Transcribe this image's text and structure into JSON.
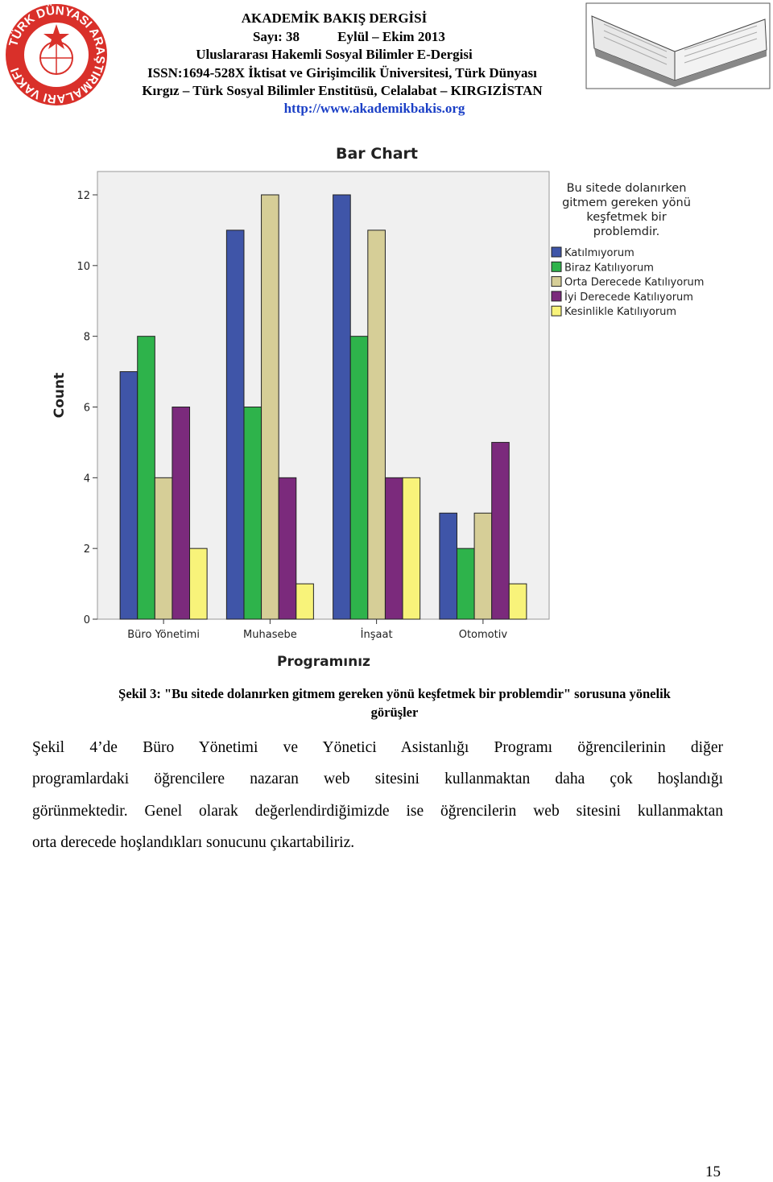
{
  "header": {
    "journal": "AKADEMİK BAKIŞ DERGİSİ",
    "issue": "Sayı: 38",
    "date": "Eylül – Ekim 2013",
    "subtitle": "Uluslararası Hakemli Sosyal Bilimler E-Dergisi",
    "issn": "ISSN:1694-528X İktisat ve Girişimcilik Üniversitesi, Türk Dünyası",
    "institute": "Kırgız – Türk Sosyal Bilimler Enstitüsü, Celalabat – KIRGIZİSTAN",
    "url": "http://www.akademikbakis.org",
    "logo_text": "TÜRK DÜNYASI ARAŞTIRMALARI VAKFI"
  },
  "chart_data": {
    "type": "bar",
    "title": "Bar Chart",
    "x_label": "Programınız",
    "y_label": "Count",
    "categories": [
      "Büro Yönetimi",
      "Muhasebe",
      "İnşaat",
      "Otomotiv"
    ],
    "legend_title": [
      "Bu sitede dolanırken",
      "gitmem gereken yönü",
      "keşfetmek bir",
      "problemdir."
    ],
    "series": [
      {
        "name": "Katılmıyorum",
        "color": "#3f55a8",
        "values": [
          7,
          11,
          12,
          3
        ]
      },
      {
        "name": "Biraz Katılıyorum",
        "color": "#2eb34b",
        "values": [
          8,
          6,
          8,
          2
        ]
      },
      {
        "name": "Orta Derecede Katılıyorum",
        "color": "#d6ce97",
        "values": [
          4,
          12,
          11,
          3
        ]
      },
      {
        "name": "İyi Derecede Katılıyorum",
        "color": "#7b2a7c",
        "values": [
          6,
          4,
          4,
          5
        ]
      },
      {
        "name": "Kesinlikle Katılıyorum",
        "color": "#f8f37a",
        "values": [
          2,
          1,
          4,
          1
        ]
      }
    ],
    "ylim": [
      0,
      12.66
    ],
    "yticks": [
      0,
      2,
      4,
      6,
      8,
      10,
      12
    ],
    "legend": "right",
    "grid": false
  },
  "caption": [
    "Şekil 3: \"Bu sitede dolanırken gitmem gereken yönü keşfetmek bir problemdir\"  sorusuna yönelik",
    "görüşler"
  ],
  "paragraph": [
    "Şekil 4’de Büro Yönetimi ve Yönetici Asistanlığı Programı öğrencilerinin diğer",
    "programlardaki öğrencilere nazaran web sitesini kullanmaktan daha çok hoşlandığı",
    "görünmektedir. Genel olarak değerlendirdiğimizde ise öğrencilerin web sitesini kullanmaktan",
    "orta derecede hoşlandıkları sonucunu çıkartabiliriz."
  ],
  "page_number": "15"
}
